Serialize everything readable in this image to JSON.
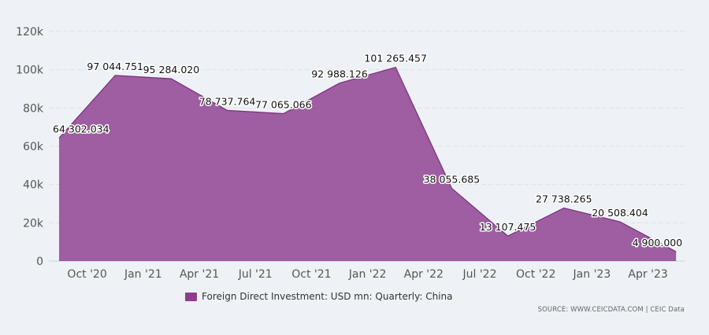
{
  "chart_data": {
    "type": "area",
    "categories": [
      "Oct '20",
      "Jan '21",
      "Apr '21",
      "Jul '21",
      "Oct '21",
      "Jan '22",
      "Apr '22",
      "Jul '22",
      "Oct '22",
      "Jan '23",
      "Apr '23"
    ],
    "series": [
      {
        "name": "Foreign Direct Investment: USD mn: Quarterly: China",
        "color": "#8c3d8e",
        "x": [
          "2020-09",
          "2020-12",
          "2021-03",
          "2021-06",
          "2021-09",
          "2021-12",
          "2022-03",
          "2022-06",
          "2022-09",
          "2022-12",
          "2023-03",
          "2023-06"
        ],
        "values": [
          64302.034,
          97044.751,
          95284.02,
          78737.764,
          77065.066,
          92988.126,
          101265.457,
          38055.685,
          13107.475,
          27738.265,
          20508.404,
          4900.0
        ],
        "labels": [
          "64 302.034",
          "97 044.751",
          "95 284.020",
          "78 737.764",
          "77 065.066",
          "92 988.126",
          "101 265.457",
          "38 055.685",
          "13 107.475",
          "27 738.265",
          "20 508.404",
          "4 900.000"
        ]
      }
    ],
    "y_ticks": [
      "0",
      "20k",
      "40k",
      "60k",
      "80k",
      "100k",
      "120k"
    ],
    "ylim": [
      0,
      120000
    ],
    "grid": true,
    "legend": "bottom"
  },
  "source_text": "SOURCE: WWW.CEICDATA.COM | CEIC Data"
}
